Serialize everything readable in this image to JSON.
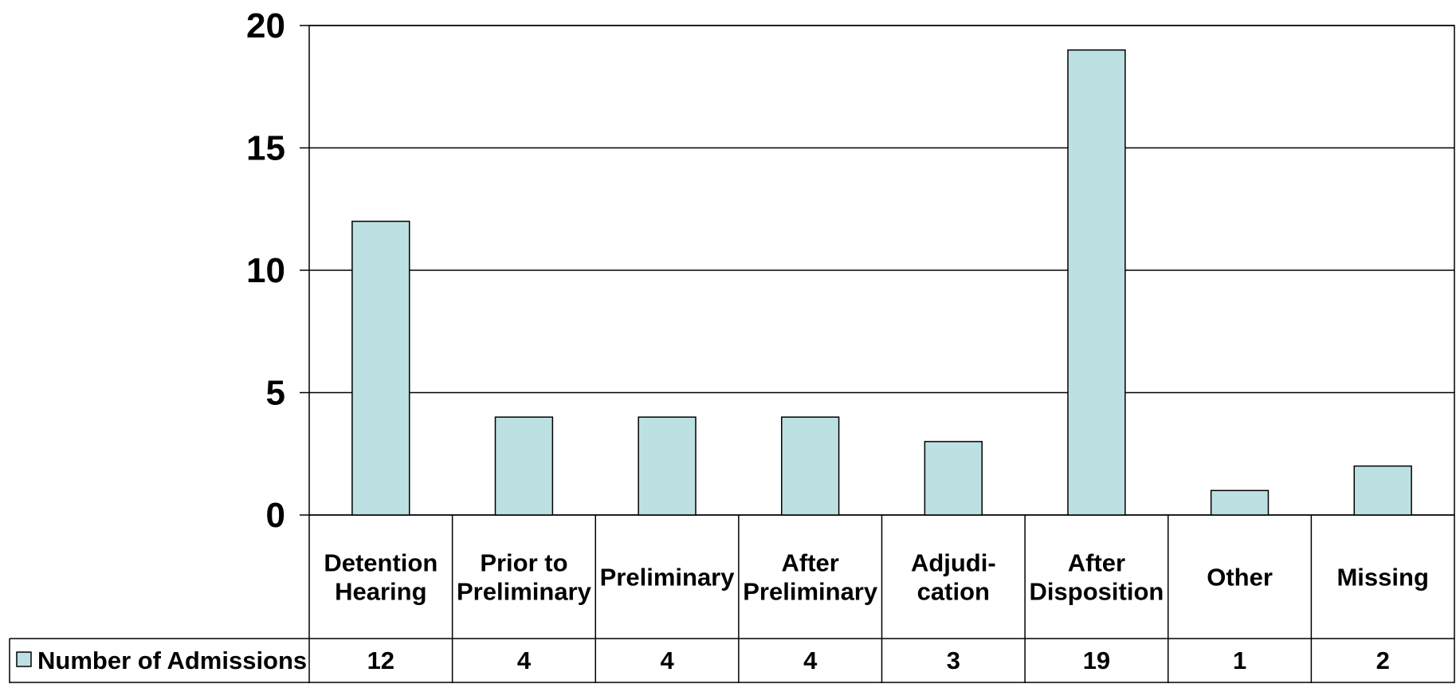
{
  "chart_data": {
    "type": "bar",
    "categories": [
      [
        "Detention",
        "Hearing"
      ],
      [
        "Prior to",
        "Preliminary"
      ],
      [
        "Preliminary"
      ],
      [
        "After",
        "Preliminary"
      ],
      [
        "Adjudi-",
        "cation"
      ],
      [
        "After",
        "Disposition"
      ],
      [
        "Other"
      ],
      [
        "Missing"
      ]
    ],
    "series": [
      {
        "name": "Number of Admissions",
        "values": [
          12,
          4,
          4,
          4,
          3,
          19,
          1,
          2
        ],
        "color": "#bde0e2"
      }
    ],
    "ylim": [
      0,
      20
    ],
    "yticks": [
      0,
      5,
      10,
      15,
      20
    ],
    "grid": true,
    "legend": "data-table-left",
    "title": "",
    "xlabel": "",
    "ylabel": ""
  }
}
